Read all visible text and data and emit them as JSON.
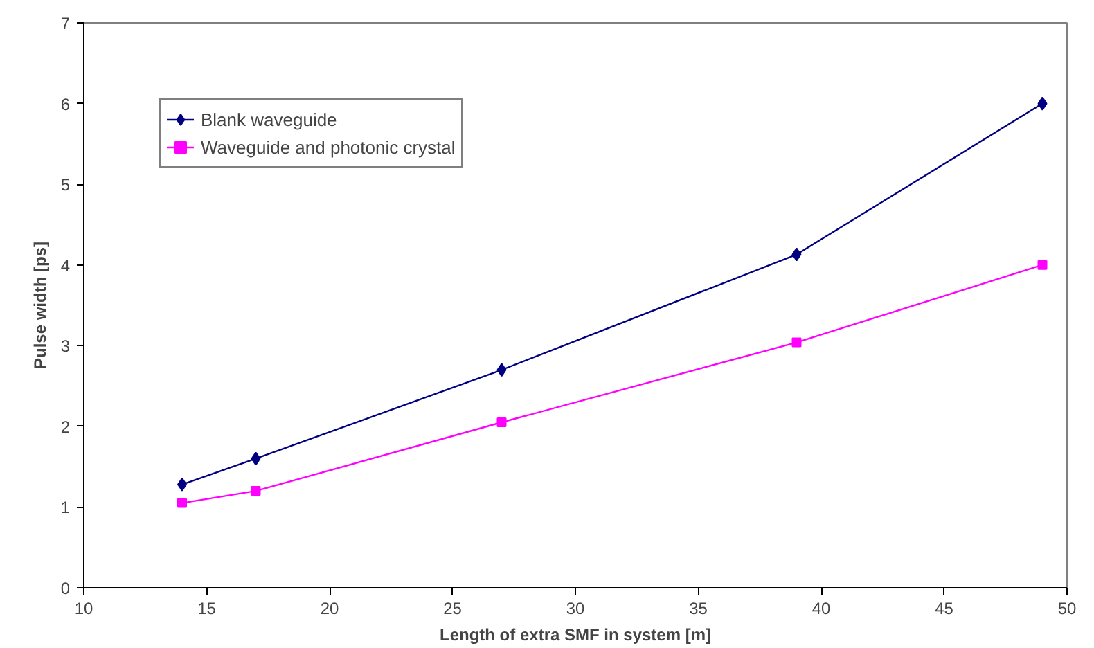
{
  "chart_data": {
    "type": "line",
    "xlabel": "Length of extra SMF in system [m]",
    "ylabel": "Pulse width [ps]",
    "x": [
      14,
      17,
      27,
      39,
      49
    ],
    "series": [
      {
        "name": "Blank waveguide",
        "color": "#000080",
        "marker": "diamond",
        "values": [
          1.28,
          1.6,
          2.7,
          4.13,
          6.0
        ]
      },
      {
        "name": "Waveguide and photonic crystal",
        "color": "#ff00ff",
        "marker": "square",
        "values": [
          1.05,
          1.2,
          2.05,
          3.04,
          4.0
        ]
      }
    ],
    "xlim": [
      10,
      50
    ],
    "xticks": [
      10,
      15,
      20,
      25,
      30,
      35,
      40,
      45,
      50
    ],
    "ylim": [
      0,
      7
    ],
    "yticks": [
      0,
      1,
      2,
      3,
      4,
      5,
      6,
      7
    ],
    "grid": false,
    "legend": "top left",
    "line_style": "solid"
  }
}
